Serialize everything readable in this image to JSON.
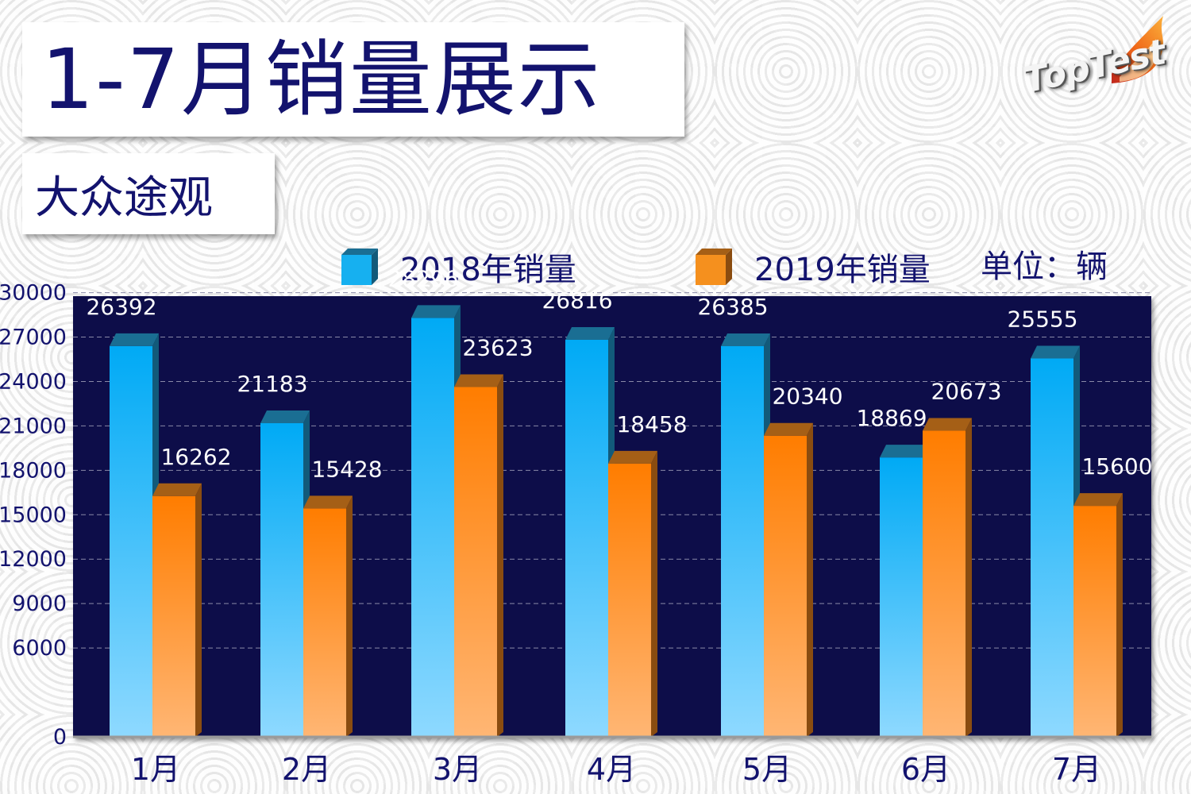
{
  "header": {
    "title": "1-7月销量展示",
    "subtitle": "大众途观",
    "logo_text": "TopTest"
  },
  "legend": {
    "series_2018": "2018年销量",
    "series_2019": "2019年销量",
    "unit": "单位：辆"
  },
  "colors": {
    "series_2018_top": "#00aaf5",
    "series_2018_bottom": "#8ed9ff",
    "series_2019_top": "#ff7d00",
    "series_2019_bottom": "#ffb674",
    "plot_background": "#0e0b4a",
    "title_text": "#13136e"
  },
  "chart_data": {
    "type": "bar",
    "categories": [
      "1月",
      "2月",
      "3月",
      "4月",
      "5月",
      "6月",
      "7月"
    ],
    "series": [
      {
        "name": "2018年销量",
        "values": [
          26392,
          21183,
          28296,
          26816,
          26385,
          18869,
          25555
        ]
      },
      {
        "name": "2019年销量",
        "values": [
          16262,
          15428,
          23623,
          18458,
          20340,
          20673,
          15600
        ]
      }
    ],
    "y_ticks": [
      0,
      6000,
      9000,
      12000,
      15000,
      18000,
      21000,
      24000,
      27000,
      30000
    ],
    "ylim": [
      0,
      30000
    ],
    "grid": true,
    "legend_position": "top"
  }
}
